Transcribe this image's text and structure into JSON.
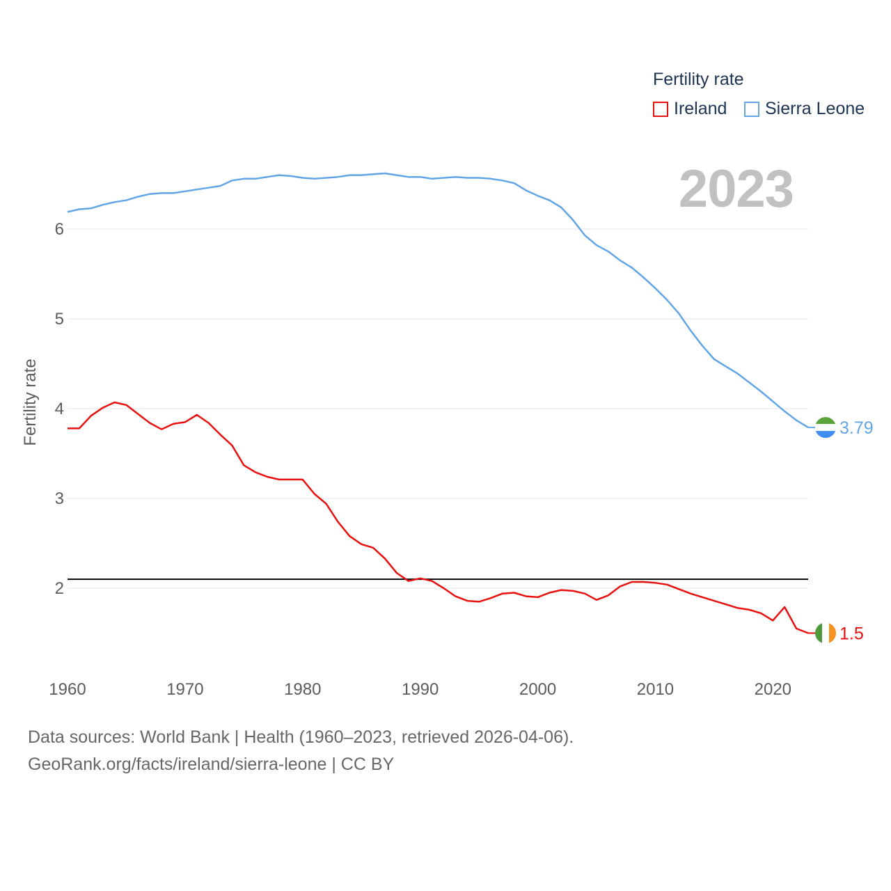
{
  "legend": {
    "title": "Fertility rate",
    "items": [
      {
        "label": "Ireland",
        "color": "#e8100f"
      },
      {
        "label": "Sierra Leone",
        "color": "#62a5e6"
      }
    ]
  },
  "year_label": "2023",
  "footer": {
    "source_line": "Data sources: World Bank | Health (1960–2023, retrieved 2026-04-06).",
    "link_line": "GeoRank.org/facts/ireland/sierra-leone | CC BY"
  },
  "chart_data": {
    "type": "line",
    "title": "Fertility rate",
    "xlabel": "",
    "ylabel": "Fertility rate",
    "xlim": [
      1960,
      2023
    ],
    "ylim": [
      1.0,
      6.8
    ],
    "x_ticks": [
      1960,
      1970,
      1980,
      1990,
      2000,
      2010,
      2020
    ],
    "y_ticks": [
      2,
      3,
      4,
      5,
      6
    ],
    "grid": true,
    "reference_line": {
      "y": 2.1,
      "color": "#000000"
    },
    "x": [
      1960,
      1961,
      1962,
      1963,
      1964,
      1965,
      1966,
      1967,
      1968,
      1969,
      1970,
      1971,
      1972,
      1973,
      1974,
      1975,
      1976,
      1977,
      1978,
      1979,
      1980,
      1981,
      1982,
      1983,
      1984,
      1985,
      1986,
      1987,
      1988,
      1989,
      1990,
      1991,
      1992,
      1993,
      1994,
      1995,
      1996,
      1997,
      1998,
      1999,
      2000,
      2001,
      2002,
      2003,
      2004,
      2005,
      2006,
      2007,
      2008,
      2009,
      2010,
      2011,
      2012,
      2013,
      2014,
      2015,
      2016,
      2017,
      2018,
      2019,
      2020,
      2021,
      2022,
      2023
    ],
    "series": [
      {
        "name": "Ireland",
        "color": "#e8100f",
        "end_label": "1.5",
        "values": [
          3.78,
          3.78,
          3.92,
          4.01,
          4.07,
          4.04,
          3.94,
          3.84,
          3.77,
          3.83,
          3.85,
          3.93,
          3.84,
          3.71,
          3.59,
          3.37,
          3.29,
          3.24,
          3.21,
          3.21,
          3.21,
          3.05,
          2.94,
          2.74,
          2.58,
          2.49,
          2.45,
          2.33,
          2.17,
          2.08,
          2.11,
          2.08,
          2.0,
          1.91,
          1.86,
          1.85,
          1.89,
          1.94,
          1.95,
          1.91,
          1.9,
          1.95,
          1.98,
          1.97,
          1.94,
          1.87,
          1.92,
          2.02,
          2.07,
          2.07,
          2.06,
          2.04,
          1.99,
          1.94,
          1.9,
          1.86,
          1.82,
          1.78,
          1.76,
          1.72,
          1.64,
          1.79,
          1.55,
          1.5
        ]
      },
      {
        "name": "Sierra Leone",
        "color": "#62a5e6",
        "end_label": "3.79",
        "values": [
          6.19,
          6.22,
          6.23,
          6.27,
          6.3,
          6.32,
          6.36,
          6.39,
          6.4,
          6.4,
          6.42,
          6.44,
          6.46,
          6.48,
          6.54,
          6.56,
          6.56,
          6.58,
          6.6,
          6.59,
          6.57,
          6.56,
          6.57,
          6.58,
          6.6,
          6.6,
          6.61,
          6.62,
          6.6,
          6.58,
          6.58,
          6.56,
          6.57,
          6.58,
          6.57,
          6.57,
          6.56,
          6.54,
          6.51,
          6.43,
          6.37,
          6.32,
          6.24,
          6.1,
          5.93,
          5.82,
          5.75,
          5.65,
          5.57,
          5.46,
          5.34,
          5.21,
          5.06,
          4.87,
          4.7,
          4.55,
          4.47,
          4.39,
          4.29,
          4.19,
          4.08,
          3.97,
          3.87,
          3.79
        ]
      }
    ]
  }
}
